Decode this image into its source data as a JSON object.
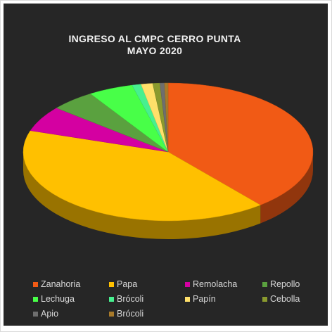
{
  "chart_data": {
    "type": "pie",
    "title_line1": "INGRESO AL CMPC CERRO PUNTA",
    "title_line2": "MAYO 2020",
    "legend_position": "bottom",
    "slices": [
      {
        "label": "Zanahoria",
        "value": 39.0,
        "color": "#f15a15"
      },
      {
        "label": "Papa",
        "value": 41.0,
        "color": "#ffc000"
      },
      {
        "label": "Remolacha",
        "value": 6.0,
        "color": "#d400a1"
      },
      {
        "label": "Repollo",
        "value": 5.0,
        "color": "#5aa13f"
      },
      {
        "label": "Lechuga",
        "value": 5.0,
        "color": "#48ff48"
      },
      {
        "label": "Brócoli",
        "value": 1.0,
        "color": "#47f08f"
      },
      {
        "label": "Papín",
        "value": 1.3,
        "color": "#ffe06a"
      },
      {
        "label": "Cebolla",
        "value": 0.8,
        "color": "#8a9a2e"
      },
      {
        "label": "Apio",
        "value": 0.5,
        "color": "#6e6e6e"
      },
      {
        "label": "Brócoli",
        "value": 0.4,
        "color": "#a87a2a"
      }
    ]
  }
}
